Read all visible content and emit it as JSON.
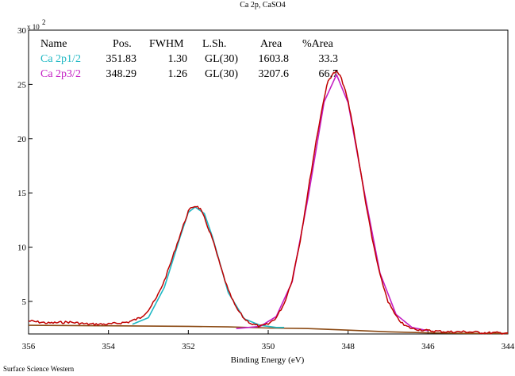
{
  "chart_data": {
    "type": "line",
    "title": "Ca 2p, CaSO4",
    "xlabel": "Binding Energy (eV)",
    "ylabel": "",
    "y_multiplier_label": "x 10",
    "y_multiplier_exp": "2",
    "footer": "Surface Science Western",
    "x_reversed": true,
    "xlim": [
      356,
      344
    ],
    "ylim": [
      2,
      30
    ],
    "x_ticks": [
      356,
      354,
      352,
      350,
      348,
      346,
      344
    ],
    "y_ticks": [
      5,
      10,
      15,
      20,
      25,
      30
    ],
    "grid": false,
    "legend_table": {
      "headers": [
        "Name",
        "Pos.",
        "FWHM",
        "L.Sh.",
        "Area",
        "%Area"
      ],
      "rows": [
        [
          "Ca 2p1/2",
          "351.83",
          "1.30",
          "GL(30)",
          "1603.8",
          "33.3"
        ],
        [
          "Ca 2p3/2",
          "348.29",
          "1.26",
          "GL(30)",
          "3207.6",
          "66.7"
        ]
      ]
    },
    "colors": {
      "data": "#c00000",
      "ca2p12": "#1fb8c4",
      "ca2p32": "#c41fc4",
      "background": "#8b4a14",
      "axis": "#000000"
    },
    "series": [
      {
        "name": "Data",
        "x": [
          356.0,
          355.5,
          355.0,
          354.5,
          354.0,
          353.5,
          353.2,
          353.0,
          352.8,
          352.6,
          352.4,
          352.2,
          352.0,
          351.9,
          351.8,
          351.7,
          351.6,
          351.4,
          351.2,
          351.0,
          350.8,
          350.6,
          350.4,
          350.2,
          350.0,
          349.8,
          349.6,
          349.4,
          349.2,
          349.0,
          348.8,
          348.6,
          348.5,
          348.4,
          348.3,
          348.2,
          348.1,
          348.0,
          347.9,
          347.8,
          347.6,
          347.4,
          347.2,
          347.0,
          346.8,
          346.6,
          346.4,
          346.2,
          346.0,
          345.5,
          345.0,
          344.5,
          344.0
        ],
        "y": [
          3.2,
          3.0,
          3.1,
          2.9,
          2.9,
          3.1,
          3.5,
          4.2,
          5.3,
          6.9,
          9.0,
          11.2,
          13.3,
          13.7,
          13.8,
          13.5,
          12.7,
          10.8,
          8.3,
          6.0,
          4.4,
          3.4,
          2.9,
          2.7,
          2.9,
          3.5,
          4.8,
          7.0,
          10.6,
          15.2,
          19.8,
          23.8,
          25.3,
          25.9,
          26.2,
          25.8,
          24.8,
          23.4,
          21.6,
          19.5,
          15.0,
          10.8,
          7.4,
          5.0,
          3.6,
          2.8,
          2.5,
          2.4,
          2.3,
          2.2,
          2.2,
          2.1,
          2.1
        ]
      },
      {
        "name": "Ca 2p1/2",
        "x": [
          353.4,
          353.0,
          352.6,
          352.2,
          352.0,
          351.83,
          351.6,
          351.4,
          351.0,
          350.6,
          350.2,
          349.8,
          349.6
        ],
        "y": [
          2.9,
          3.5,
          6.3,
          11.0,
          13.2,
          13.7,
          13.1,
          11.0,
          5.8,
          3.4,
          2.8,
          2.6,
          2.6
        ]
      },
      {
        "name": "Ca 2p3/2",
        "x": [
          350.8,
          350.2,
          349.8,
          349.4,
          349.0,
          348.6,
          348.29,
          348.0,
          347.6,
          347.2,
          346.8,
          346.4,
          346.0
        ],
        "y": [
          2.5,
          2.7,
          3.6,
          6.8,
          14.6,
          23.4,
          25.9,
          23.3,
          15.2,
          7.6,
          3.8,
          2.6,
          2.3
        ]
      },
      {
        "name": "Background",
        "x": [
          356.0,
          354.0,
          352.0,
          351.0,
          350.0,
          349.0,
          348.0,
          347.0,
          346.0,
          345.0,
          344.0
        ],
        "y": [
          2.8,
          2.75,
          2.7,
          2.65,
          2.55,
          2.5,
          2.35,
          2.2,
          2.1,
          2.05,
          2.05
        ]
      }
    ]
  }
}
